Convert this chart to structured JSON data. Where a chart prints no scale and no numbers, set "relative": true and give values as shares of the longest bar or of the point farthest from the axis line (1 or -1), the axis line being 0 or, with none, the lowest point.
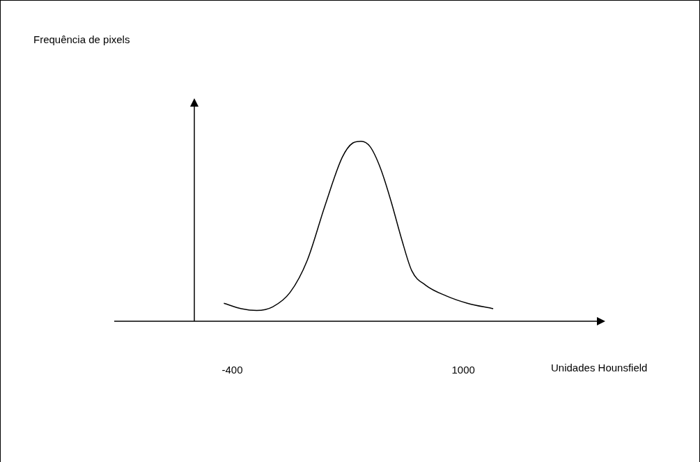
{
  "chart_data": {
    "type": "line",
    "relative": true,
    "xlabel": "Unidades Hounsfield",
    "annotations": [
      "Frequência de pixels"
    ],
    "x": [
      -451,
      -345,
      -252,
      -155,
      -50,
      55,
      161,
      266,
      330,
      380,
      435,
      498,
      561,
      625,
      688,
      772,
      899,
      1025,
      1181
    ],
    "xlim": [
      -630,
      1818
    ],
    "xticks": [
      -400,
      1000
    ],
    "grid": false,
    "legend": false,
    "marker": "none",
    "line_style": "solid",
    "series": [
      {
        "color": "#000000",
        "values": [
          0.1,
          0.07,
          0.06,
          0.08,
          0.16,
          0.34,
          0.64,
          0.91,
          0.99,
          1,
          0.97,
          0.85,
          0.67,
          0.46,
          0.28,
          0.2,
          0.14,
          0.1,
          0.07
        ]
      }
    ]
  }
}
